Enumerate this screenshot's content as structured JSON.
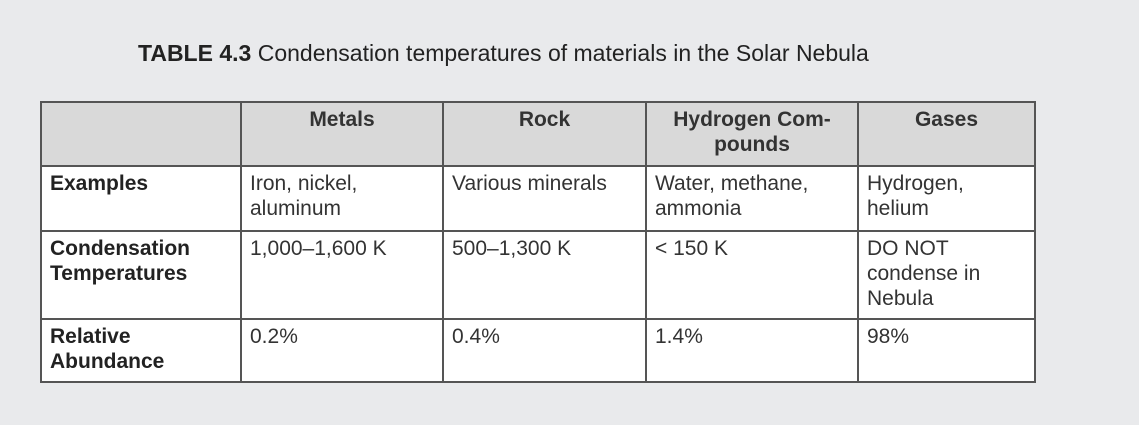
{
  "caption": {
    "label": "TABLE 4.3",
    "text": "Condensation temperatures of materials in the Solar Nebula"
  },
  "table": {
    "header": [
      "Metals",
      "Rock",
      "Hydrogen Com-\npounds",
      "Gases"
    ],
    "rows": [
      {
        "label": "Examples",
        "cells": [
          "Iron, nickel,\naluminum",
          "Various minerals",
          "Water, methane,\nammonia",
          "Hydrogen,\nhelium"
        ]
      },
      {
        "label": "Condensation\nTemperatures",
        "cells": [
          "1,000–1,600 K",
          "500–1,300 K",
          "< 150 K",
          "DO NOT\ncondense in\nNebula"
        ]
      },
      {
        "label": "Relative\nAbundance",
        "cells": [
          "0.2%",
          "0.4%",
          "1.4%",
          "98%"
        ]
      }
    ]
  }
}
